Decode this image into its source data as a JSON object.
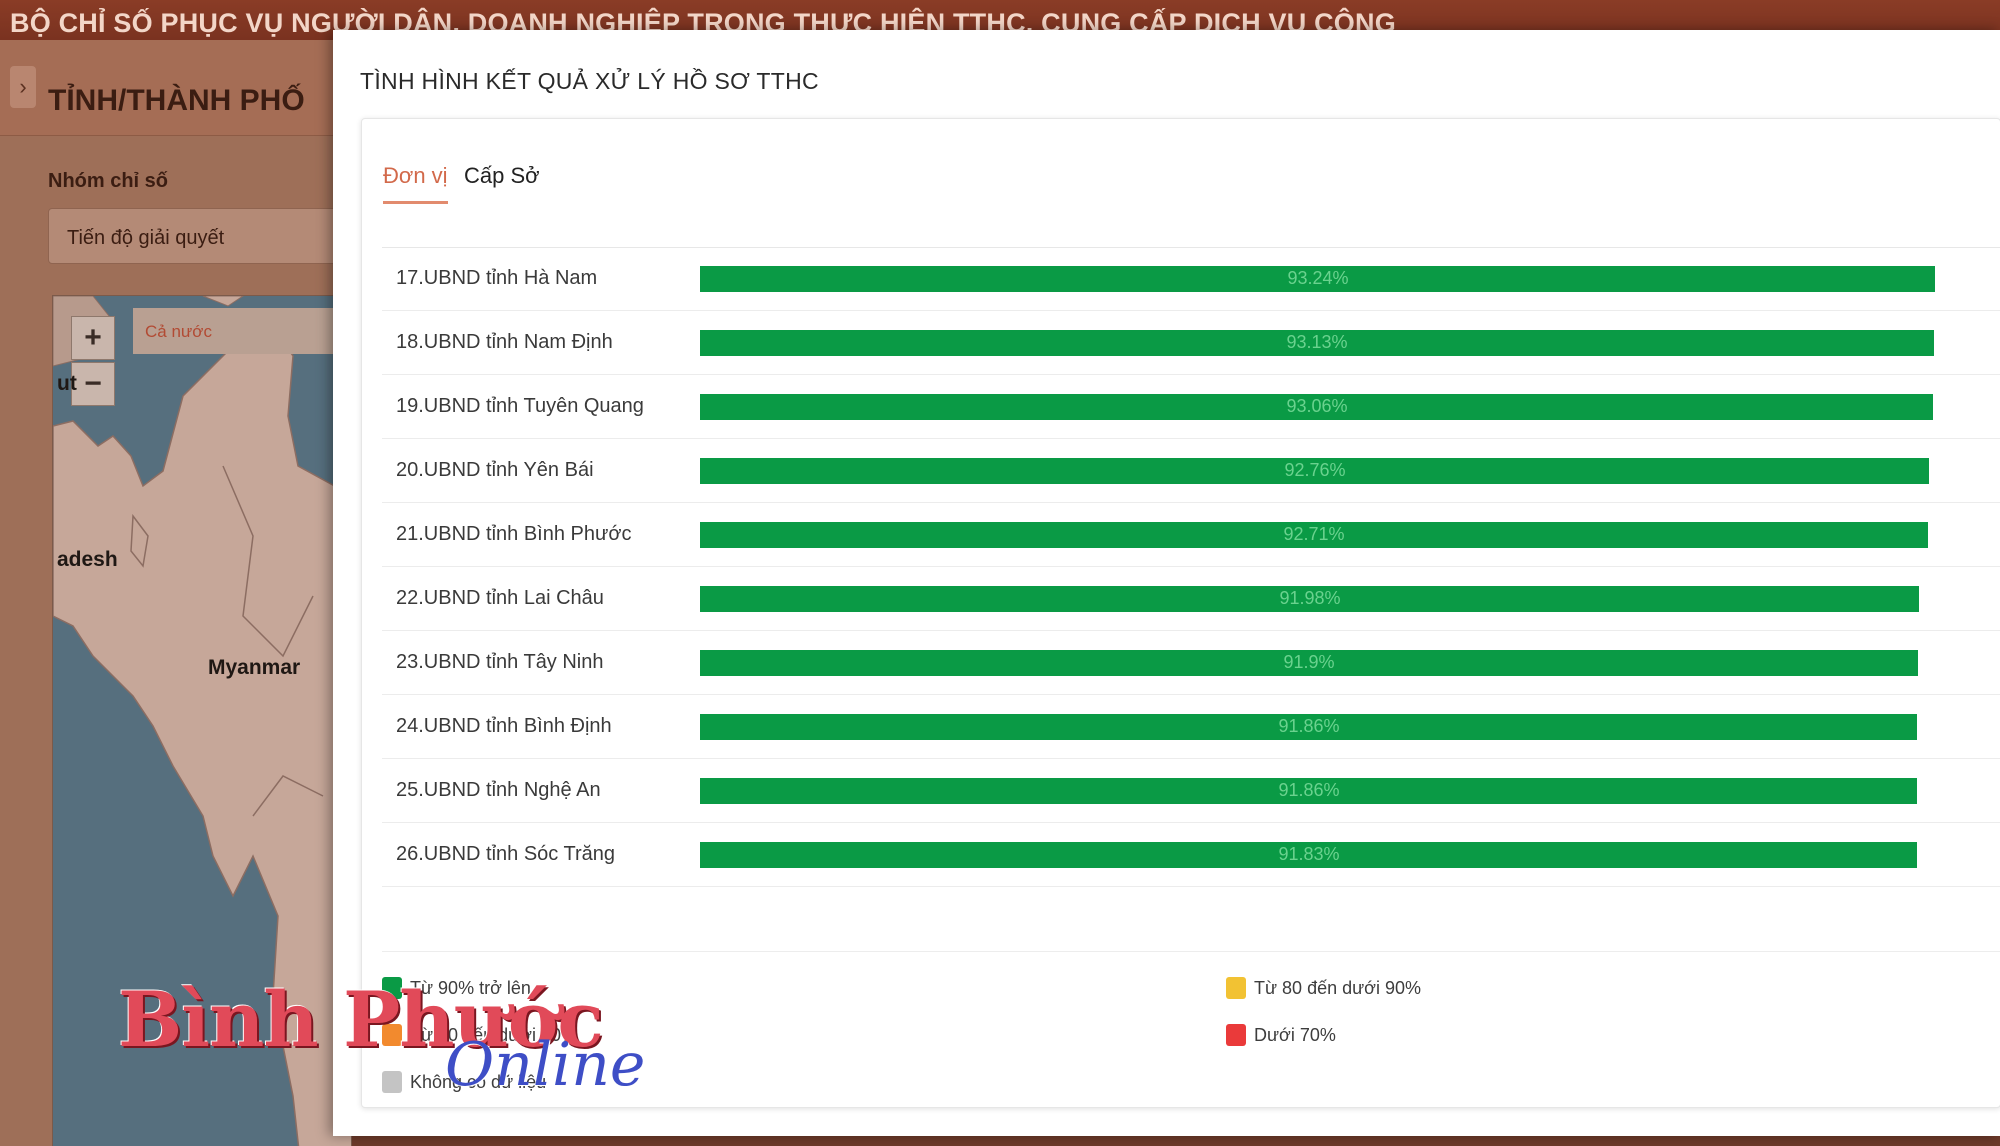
{
  "app": {
    "banner_title": "BỘ CHỈ SỐ PHỤC VỤ NGƯỜI DÂN, DOANH NGHIỆP TRONG THỰC HIỆN TTHC, CUNG CẤP DỊCH VỤ CÔNG"
  },
  "sidebar": {
    "title": "TỈNH/THÀNH PHỐ",
    "group_label": "Nhóm chỉ số",
    "group_value": "Tiến độ giải quyết",
    "map": {
      "zoom_in": "+",
      "zoom_out": "−",
      "scope": "Cả nước",
      "labels": {
        "edge": "ut",
        "region": "adesh",
        "country": "Myanmar"
      }
    }
  },
  "modal": {
    "title": "TÌNH HÌNH KẾT QUẢ XỬ LÝ HỒ SƠ TTHC",
    "tabs": [
      {
        "label": "Đơn vị",
        "active": true
      },
      {
        "label": "Cấp Sở",
        "active": false
      }
    ],
    "rows": [
      {
        "label": "17.UBND tỉnh Hà Nam",
        "value_text": "93.24%",
        "value": 93.24
      },
      {
        "label": "18.UBND tỉnh Nam Định",
        "value_text": "93.13%",
        "value": 93.13
      },
      {
        "label": "19.UBND tỉnh Tuyên Quang",
        "value_text": "93.06%",
        "value": 93.06
      },
      {
        "label": "20.UBND tỉnh Yên Bái",
        "value_text": "92.76%",
        "value": 92.76
      },
      {
        "label": "21.UBND tỉnh Bình Phước",
        "value_text": "92.71%",
        "value": 92.71
      },
      {
        "label": "22.UBND tỉnh Lai Châu",
        "value_text": "91.98%",
        "value": 91.98
      },
      {
        "label": "23.UBND tỉnh Tây Ninh",
        "value_text": "91.9%",
        "value": 91.9
      },
      {
        "label": "24.UBND tỉnh Bình Định",
        "value_text": "91.86%",
        "value": 91.86
      },
      {
        "label": "25.UBND tỉnh Nghệ An",
        "value_text": "91.86%",
        "value": 91.86
      },
      {
        "label": "26.UBND tỉnh Sóc Trăng",
        "value_text": "91.83%",
        "value": 91.83
      }
    ],
    "legend": [
      {
        "label": "Từ 90% trở lên",
        "color": "#0a9a45"
      },
      {
        "label": "Từ 80 đến dưới 90%",
        "color": "#f2c233"
      },
      {
        "label": "Từ 70 đến dưới 80%",
        "color": "#f28a2e"
      },
      {
        "label": "Dưới 70%",
        "color": "#ea3a3a"
      },
      {
        "label": "Không có dữ liệu",
        "color": "#c4c4c4"
      }
    ]
  },
  "watermark": {
    "main": "Bình Phước",
    "sub": "Online"
  },
  "colors": {
    "bar": "#0a9a45",
    "accent_tab": "#d2694a",
    "banner": "#7a3220"
  }
}
